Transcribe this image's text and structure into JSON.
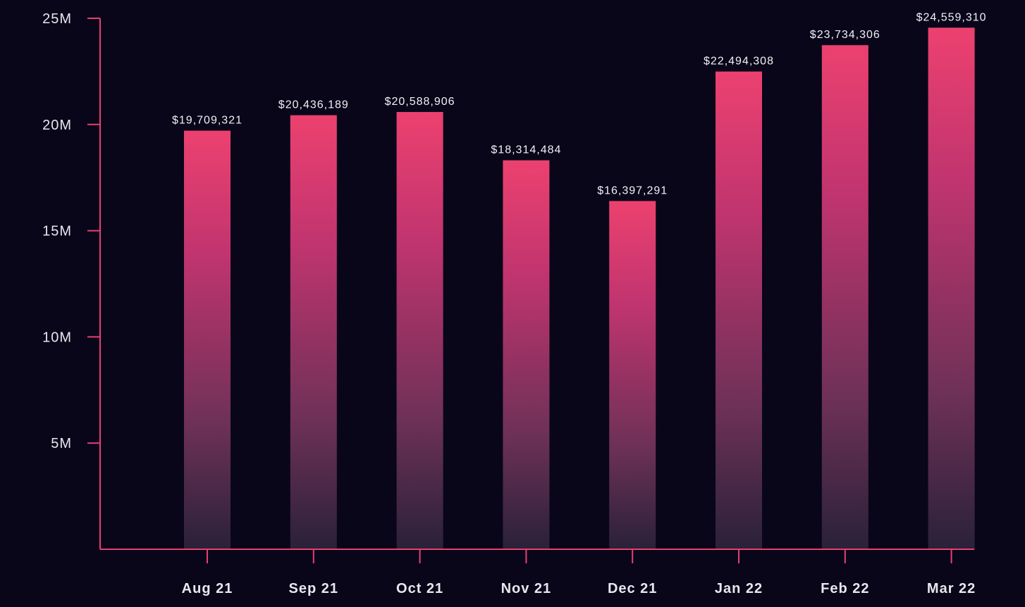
{
  "chart_data": {
    "type": "bar",
    "categories": [
      "Aug 21",
      "Sep 21",
      "Oct 21",
      "Nov 21",
      "Dec 21",
      "Jan 22",
      "Feb 22",
      "Mar 22"
    ],
    "values": [
      19709321,
      20436189,
      20588906,
      18314484,
      16397291,
      22494308,
      23734306,
      24559310
    ],
    "value_labels": [
      "$19,709,321",
      "$20,436,189",
      "$20,588,906",
      "$18,314,484",
      "$16,397,291",
      "$22,494,308",
      "$23,734,306",
      "$24,559,310"
    ],
    "y_ticks": [
      {
        "value": 5000000,
        "label": "5M"
      },
      {
        "value": 10000000,
        "label": "10M"
      },
      {
        "value": 15000000,
        "label": "15M"
      },
      {
        "value": 20000000,
        "label": "20M"
      },
      {
        "value": 25000000,
        "label": "25M"
      }
    ],
    "ylim": [
      0,
      25000000
    ],
    "title": "",
    "xlabel": "",
    "ylabel": "",
    "grid": false,
    "colors": {
      "background": "#09061a",
      "axis": "#e83f70",
      "bar_top": "#ec416f",
      "bar_mid": "#c0346f",
      "bar_bottom": "#2a2138",
      "text": "#e9e6ee"
    }
  }
}
